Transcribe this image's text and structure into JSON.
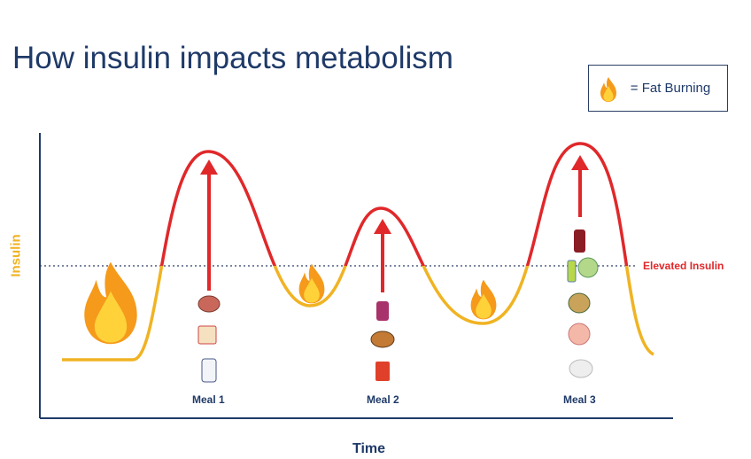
{
  "title": "How insulin impacts metabolism",
  "legend": {
    "icon": "flame-icon",
    "label": "= Fat Burning"
  },
  "axes": {
    "y": "Insulin",
    "x": "Time"
  },
  "threshold_label": "Elevated Insulin",
  "meals": [
    {
      "label": "Meal 1",
      "foods": [
        "milk",
        "cereal",
        "pastry"
      ]
    },
    {
      "label": "Meal 2",
      "foods": [
        "fries",
        "burger",
        "smoothie"
      ]
    },
    {
      "label": "Meal 3",
      "foods": [
        "rice",
        "chicken",
        "potato",
        "salad-dressing",
        "lettuce",
        "soda"
      ]
    }
  ],
  "colors": {
    "high": "#e0282a",
    "low": "#f0b323",
    "navy": "#1f3a68"
  }
}
